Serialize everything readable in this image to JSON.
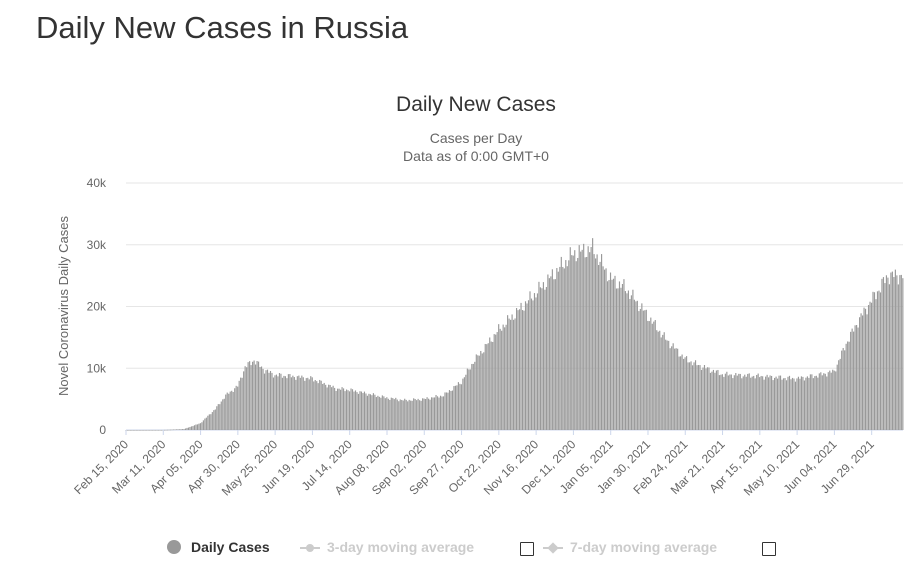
{
  "page": {
    "title": "Daily New Cases in Russia"
  },
  "legend": {
    "daily_cases": "Daily Cases",
    "ma3": "3-day moving average",
    "ma7": "7-day moving average",
    "ma3_checked": false,
    "ma7_checked": false
  },
  "colors": {
    "bar": "#999999",
    "grid": "#e6e6e6",
    "inactive": "#cccccc"
  },
  "chart_data": {
    "type": "bar",
    "title": "Daily New Cases",
    "subtitle_lines": [
      "Cases per Day",
      "Data as of 0:00 GMT+0"
    ],
    "ylabel": "Novel Coronavirus Daily Cases",
    "xlabel": "",
    "ylim": [
      0,
      40000
    ],
    "yticks": [
      0,
      10000,
      20000,
      30000,
      40000
    ],
    "ytick_labels": [
      "0",
      "10k",
      "20k",
      "30k",
      "40k"
    ],
    "xtick_labels": [
      "Feb 15, 2020",
      "Mar 11, 2020",
      "Apr 05, 2020",
      "Apr 30, 2020",
      "May 25, 2020",
      "Jun 19, 2020",
      "Jul 14, 2020",
      "Aug 08, 2020",
      "Sep 02, 2020",
      "Sep 27, 2020",
      "Oct 22, 2020",
      "Nov 16, 2020",
      "Dec 11, 2020",
      "Jan 05, 2021",
      "Jan 30, 2021",
      "Feb 24, 2021",
      "Mar 21, 2021",
      "Apr 15, 2021",
      "May 10, 2021",
      "Jun 04, 2021",
      "Jun 29, 2021"
    ],
    "x_start": "Feb 15, 2020",
    "x_end": "Jul 20, 2021",
    "grid": true,
    "legend_position": "bottom",
    "series": [
      {
        "name": "Daily Cases",
        "values": [
          {
            "x": "Feb 15, 2020",
            "y": 0
          },
          {
            "x": "Mar 11, 2020",
            "y": 10
          },
          {
            "x": "Mar 25, 2020",
            "y": 150
          },
          {
            "x": "Apr 05, 2020",
            "y": 1100
          },
          {
            "x": "Apr 15, 2020",
            "y": 3400
          },
          {
            "x": "Apr 22, 2020",
            "y": 5600
          },
          {
            "x": "Apr 30, 2020",
            "y": 7100
          },
          {
            "x": "May 05, 2020",
            "y": 10200
          },
          {
            "x": "May 11, 2020",
            "y": 11300
          },
          {
            "x": "May 18, 2020",
            "y": 9700
          },
          {
            "x": "May 25, 2020",
            "y": 8900
          },
          {
            "x": "Jun 05, 2020",
            "y": 8700
          },
          {
            "x": "Jun 19, 2020",
            "y": 8300
          },
          {
            "x": "Jul 05, 2020",
            "y": 6700
          },
          {
            "x": "Jul 14, 2020",
            "y": 6500
          },
          {
            "x": "Aug 08, 2020",
            "y": 5200
          },
          {
            "x": "Aug 20, 2020",
            "y": 4800
          },
          {
            "x": "Sep 02, 2020",
            "y": 5000
          },
          {
            "x": "Sep 15, 2020",
            "y": 5600
          },
          {
            "x": "Sep 27, 2020",
            "y": 7800
          },
          {
            "x": "Oct 05, 2020",
            "y": 11000
          },
          {
            "x": "Oct 22, 2020",
            "y": 16200
          },
          {
            "x": "Nov 05, 2020",
            "y": 19500
          },
          {
            "x": "Nov 16, 2020",
            "y": 22200
          },
          {
            "x": "Dec 01, 2020",
            "y": 26000
          },
          {
            "x": "Dec 11, 2020",
            "y": 28500
          },
          {
            "x": "Dec 24, 2020",
            "y": 29400
          },
          {
            "x": "Jan 05, 2021",
            "y": 24500
          },
          {
            "x": "Jan 15, 2021",
            "y": 23000
          },
          {
            "x": "Jan 30, 2021",
            "y": 18500
          },
          {
            "x": "Feb 10, 2021",
            "y": 15000
          },
          {
            "x": "Feb 24, 2021",
            "y": 11500
          },
          {
            "x": "Mar 05, 2021",
            "y": 10500
          },
          {
            "x": "Mar 21, 2021",
            "y": 9000
          },
          {
            "x": "Apr 15, 2021",
            "y": 8700
          },
          {
            "x": "May 10, 2021",
            "y": 8300
          },
          {
            "x": "May 25, 2021",
            "y": 8900
          },
          {
            "x": "Jun 04, 2021",
            "y": 9500
          },
          {
            "x": "Jun 12, 2021",
            "y": 14000
          },
          {
            "x": "Jun 20, 2021",
            "y": 17600
          },
          {
            "x": "Jun 29, 2021",
            "y": 21000
          },
          {
            "x": "Jul 10, 2021",
            "y": 25000
          },
          {
            "x": "Jul 20, 2021",
            "y": 25000
          }
        ]
      }
    ]
  }
}
